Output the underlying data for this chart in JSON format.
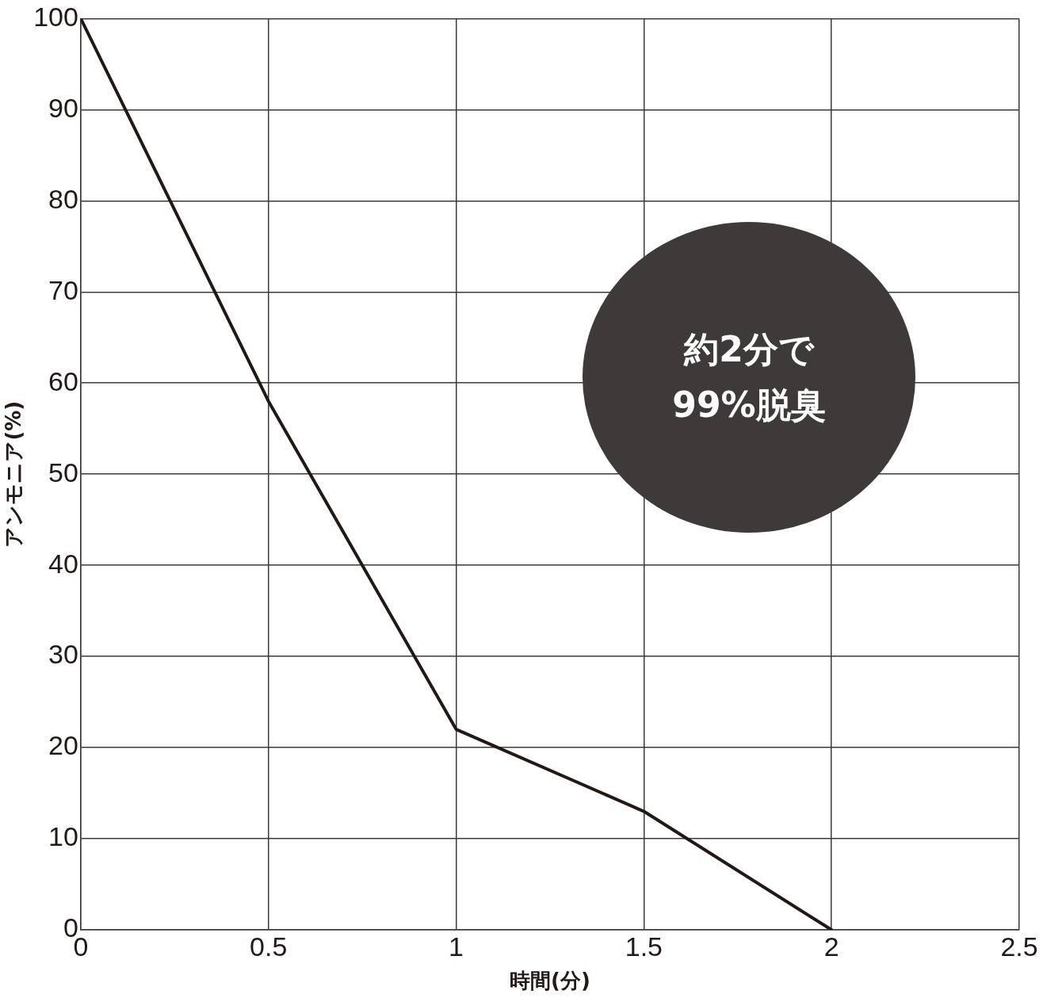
{
  "chart_data": {
    "type": "line",
    "xlabel": "時間(分)",
    "ylabel": "アンモニア(%)",
    "x": [
      0,
      0.5,
      1,
      1.5,
      2
    ],
    "series": [
      {
        "color": "#231815",
        "values": [
          100,
          58,
          22,
          13,
          0
        ]
      }
    ],
    "xlim": [
      0,
      2.5
    ],
    "xticks": [
      0,
      0.5,
      1,
      1.5,
      2,
      2.5
    ],
    "ylim": [
      0,
      100
    ],
    "yticks": [
      0,
      10,
      20,
      30,
      40,
      50,
      60,
      70,
      80,
      90,
      100
    ],
    "grid": true,
    "legend": false,
    "marker": "none",
    "line_style": "solid",
    "annotations": [
      "約2分で",
      "99%脱臭"
    ]
  }
}
